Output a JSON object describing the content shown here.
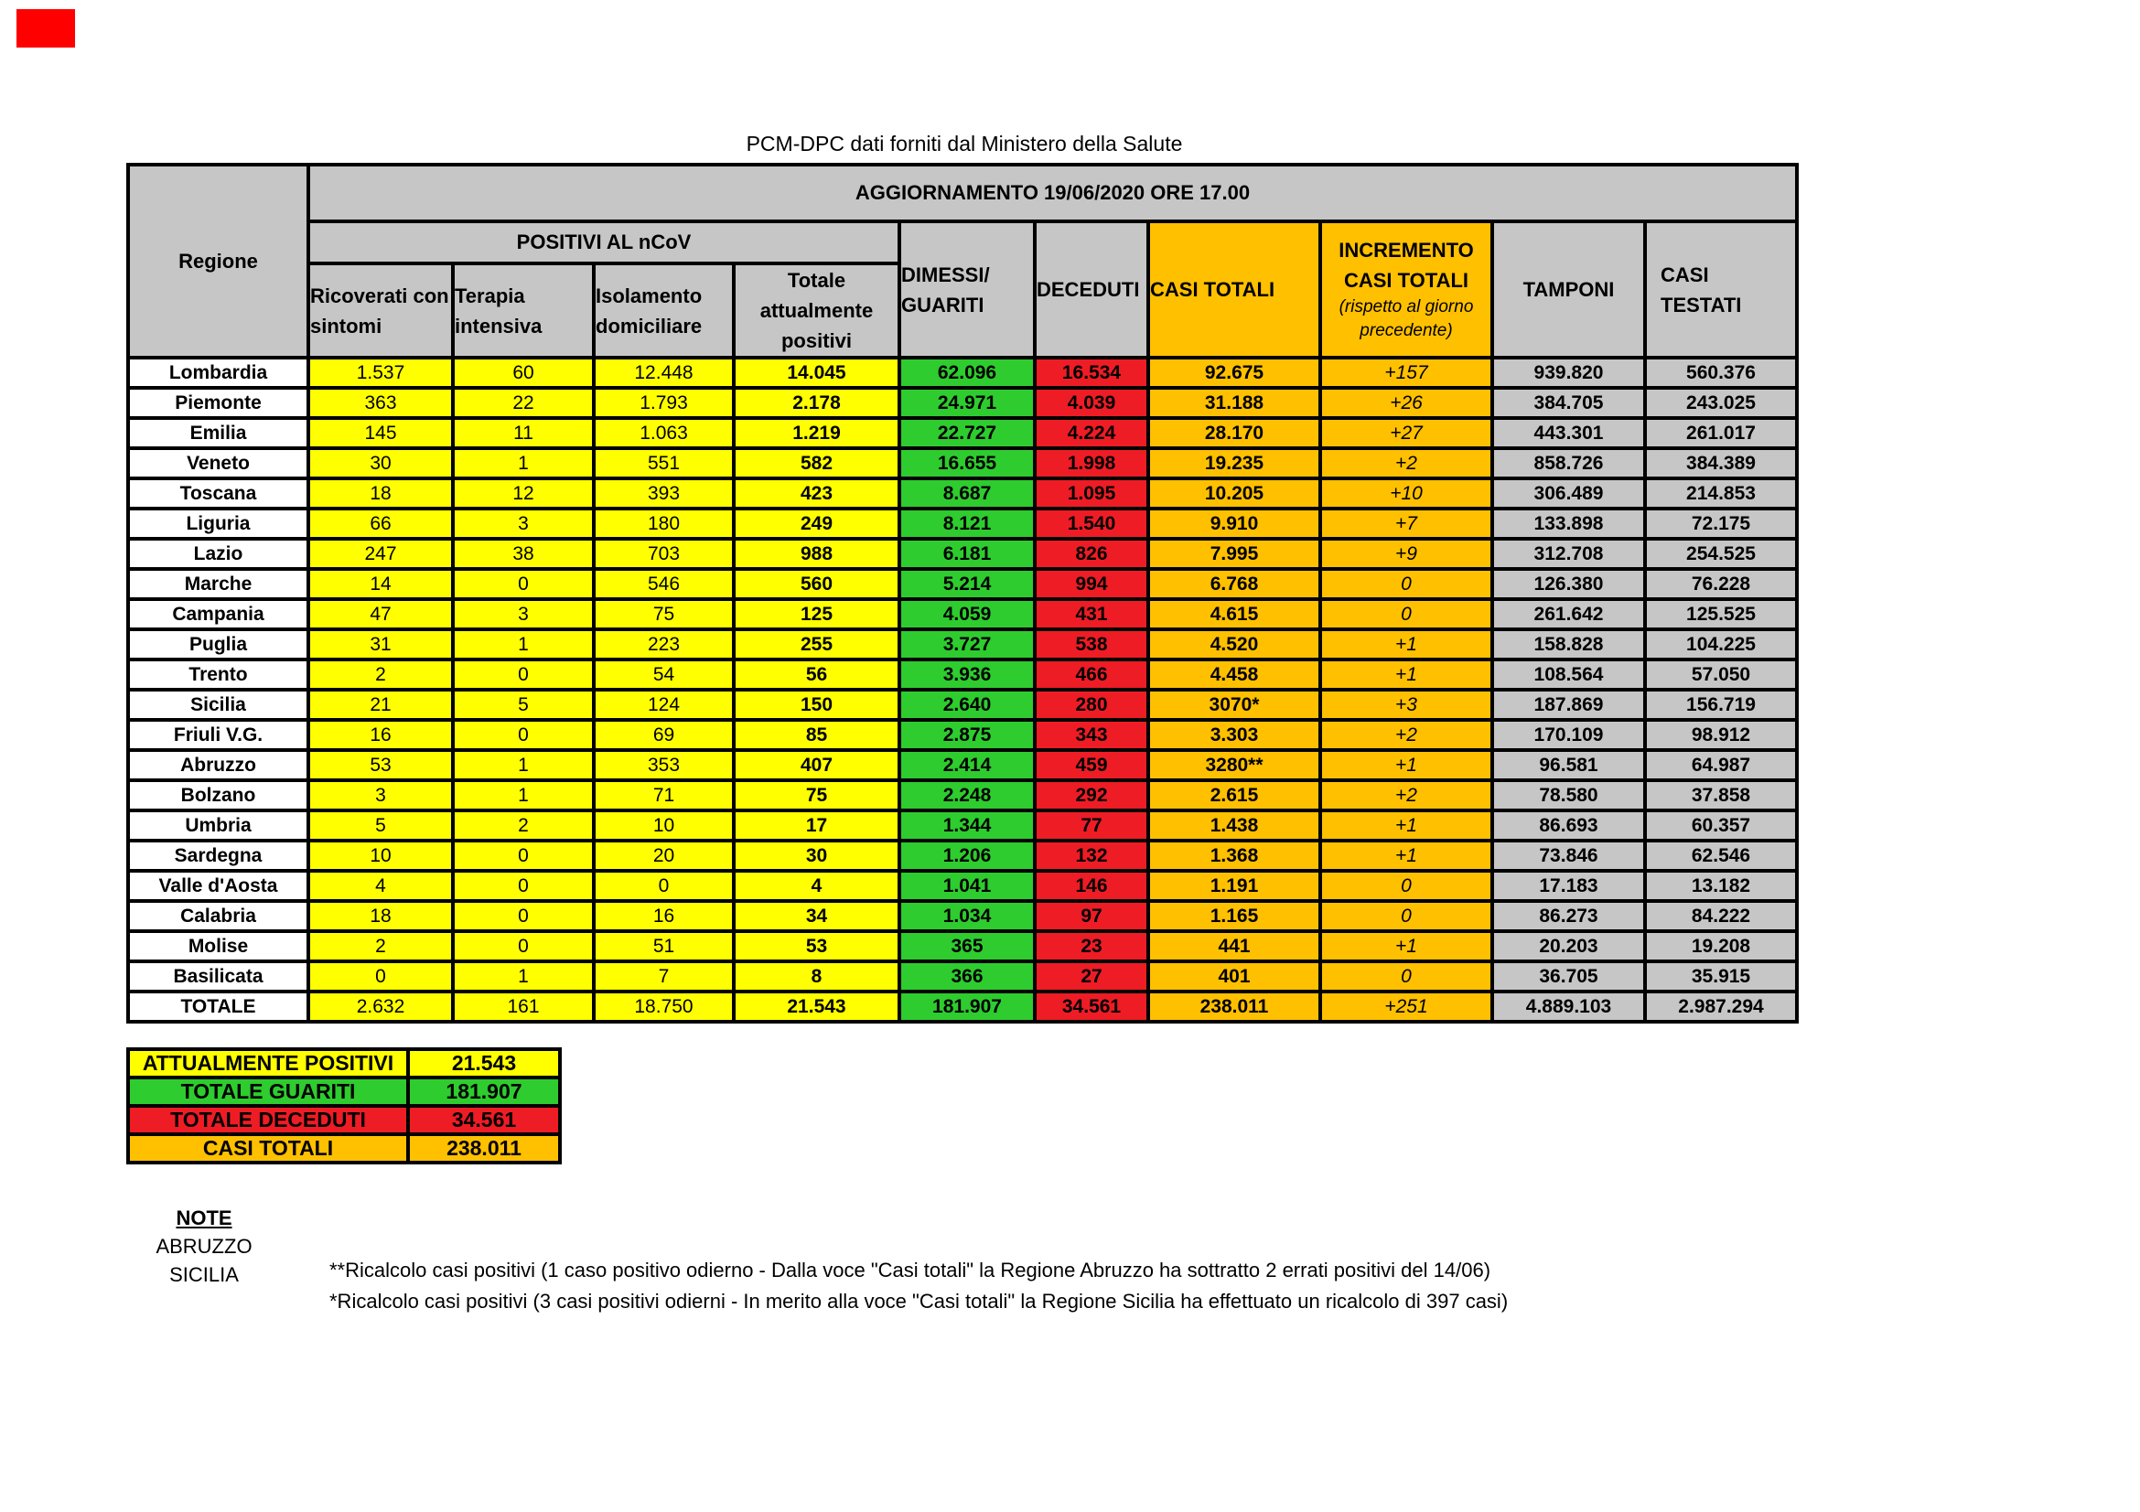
{
  "meta": {
    "source_line": "PCM-DPC dati forniti dal Ministero della Salute"
  },
  "colors": {
    "yellow": "#ffff00",
    "green": "#2ecc2e",
    "red": "#ee1c25",
    "orange": "#ffc000",
    "gray": "#c6c6c6",
    "marker_red": "#ff0000"
  },
  "table": {
    "title": "AGGIORNAMENTO 19/06/2020 ORE 17.00",
    "corner_header": "Regione",
    "group_header": "POSITIVI AL nCoV",
    "sub_headers": [
      "Ricoverati con sintomi",
      "Terapia intensiva",
      "Isolamento domiciliare",
      "Totale attualmente positivi"
    ],
    "col_headers": [
      "DIMESSI/ GUARITI",
      "DECEDUTI",
      "CASI TOTALI",
      "INCREMENTO CASI TOTALI",
      "TAMPONI",
      "CASI TESTATI"
    ],
    "increment_note": "(rispetto al giorno precedente)",
    "rows": [
      [
        "Lombardia",
        "1.537",
        "60",
        "12.448",
        "14.045",
        "62.096",
        "16.534",
        "92.675",
        "+157",
        "939.820",
        "560.376"
      ],
      [
        "Piemonte",
        "363",
        "22",
        "1.793",
        "2.178",
        "24.971",
        "4.039",
        "31.188",
        "+26",
        "384.705",
        "243.025"
      ],
      [
        "Emilia",
        "145",
        "11",
        "1.063",
        "1.219",
        "22.727",
        "4.224",
        "28.170",
        "+27",
        "443.301",
        "261.017"
      ],
      [
        "Veneto",
        "30",
        "1",
        "551",
        "582",
        "16.655",
        "1.998",
        "19.235",
        "+2",
        "858.726",
        "384.389"
      ],
      [
        "Toscana",
        "18",
        "12",
        "393",
        "423",
        "8.687",
        "1.095",
        "10.205",
        "+10",
        "306.489",
        "214.853"
      ],
      [
        "Liguria",
        "66",
        "3",
        "180",
        "249",
        "8.121",
        "1.540",
        "9.910",
        "+7",
        "133.898",
        "72.175"
      ],
      [
        "Lazio",
        "247",
        "38",
        "703",
        "988",
        "6.181",
        "826",
        "7.995",
        "+9",
        "312.708",
        "254.525"
      ],
      [
        "Marche",
        "14",
        "0",
        "546",
        "560",
        "5.214",
        "994",
        "6.768",
        "0",
        "126.380",
        "76.228"
      ],
      [
        "Campania",
        "47",
        "3",
        "75",
        "125",
        "4.059",
        "431",
        "4.615",
        "0",
        "261.642",
        "125.525"
      ],
      [
        "Puglia",
        "31",
        "1",
        "223",
        "255",
        "3.727",
        "538",
        "4.520",
        "+1",
        "158.828",
        "104.225"
      ],
      [
        "Trento",
        "2",
        "0",
        "54",
        "56",
        "3.936",
        "466",
        "4.458",
        "+1",
        "108.564",
        "57.050"
      ],
      [
        "Sicilia",
        "21",
        "5",
        "124",
        "150",
        "2.640",
        "280",
        "3070*",
        "+3",
        "187.869",
        "156.719"
      ],
      [
        "Friuli V.G.",
        "16",
        "0",
        "69",
        "85",
        "2.875",
        "343",
        "3.303",
        "+2",
        "170.109",
        "98.912"
      ],
      [
        "Abruzzo",
        "53",
        "1",
        "353",
        "407",
        "2.414",
        "459",
        "3280**",
        "+1",
        "96.581",
        "64.987"
      ],
      [
        "Bolzano",
        "3",
        "1",
        "71",
        "75",
        "2.248",
        "292",
        "2.615",
        "+2",
        "78.580",
        "37.858"
      ],
      [
        "Umbria",
        "5",
        "2",
        "10",
        "17",
        "1.344",
        "77",
        "1.438",
        "+1",
        "86.693",
        "60.357"
      ],
      [
        "Sardegna",
        "10",
        "0",
        "20",
        "30",
        "1.206",
        "132",
        "1.368",
        "+1",
        "73.846",
        "62.546"
      ],
      [
        "Valle d'Aosta",
        "4",
        "0",
        "0",
        "4",
        "1.041",
        "146",
        "1.191",
        "0",
        "17.183",
        "13.182"
      ],
      [
        "Calabria",
        "18",
        "0",
        "16",
        "34",
        "1.034",
        "97",
        "1.165",
        "0",
        "86.273",
        "84.222"
      ],
      [
        "Molise",
        "2",
        "0",
        "51",
        "53",
        "365",
        "23",
        "441",
        "+1",
        "20.203",
        "19.208"
      ],
      [
        "Basilicata",
        "0",
        "1",
        "7",
        "8",
        "366",
        "27",
        "401",
        "0",
        "36.705",
        "35.915"
      ]
    ],
    "total": [
      "TOTALE",
      "2.632",
      "161",
      "18.750",
      "21.543",
      "181.907",
      "34.561",
      "238.011",
      "+251",
      "4.889.103",
      "2.987.294"
    ]
  },
  "summary": [
    {
      "label": "ATTUALMENTE POSITIVI",
      "value": "21.543",
      "color": "yellow"
    },
    {
      "label": "TOTALE GUARITI",
      "value": "181.907",
      "color": "green"
    },
    {
      "label": "TOTALE DECEDUTI",
      "value": "34.561",
      "color": "red"
    },
    {
      "label": "CASI TOTALI",
      "value": "238.011",
      "color": "orange"
    }
  ],
  "notes": {
    "heading": "NOTE",
    "regions": [
      "ABRUZZO",
      "SICILIA"
    ],
    "lines": [
      "**Ricalcolo casi positivi (1 caso positivo odierno - Dalla voce \"Casi totali\" la Regione Abruzzo ha sottratto  2 errati positivi del 14/06)",
      "*Ricalcolo casi positivi (3 casi positivi odierni - In merito alla voce \"Casi totali\" la Regione Sicilia ha effettuato un ricalcolo di 397 casi)"
    ]
  }
}
